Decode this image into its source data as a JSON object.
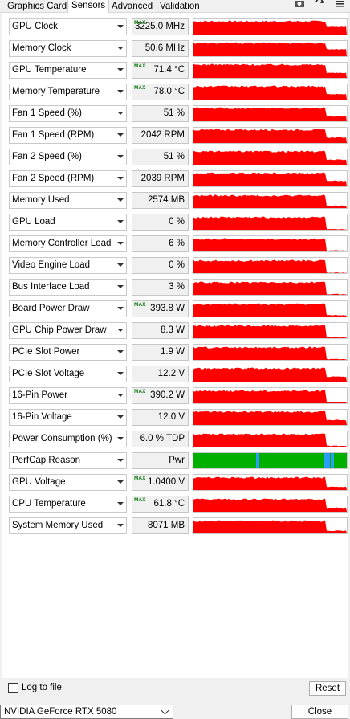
{
  "tabs": [
    {
      "label": "Graphics Card",
      "active": false
    },
    {
      "label": "Sensors",
      "active": true
    },
    {
      "label": "Advanced",
      "active": false
    },
    {
      "label": "Validation",
      "active": false
    }
  ],
  "sensors": [
    {
      "name": "GPU Clock",
      "value": "3225.0 MHz",
      "max": true,
      "level": 0.88,
      "color": "#ff0000"
    },
    {
      "name": "Memory Clock",
      "value": "50.6 MHz",
      "max": false,
      "level": 0.72,
      "color": "#ff0000"
    },
    {
      "name": "GPU Temperature",
      "value": "71.4 °C",
      "max": true,
      "level": 0.5,
      "color": "#ff0000"
    },
    {
      "name": "Memory Temperature",
      "value": "78.0 °C",
      "max": true,
      "level": 0.55,
      "color": "#ff0000"
    },
    {
      "name": "Fan 1 Speed (%)",
      "value": "51 %",
      "max": false,
      "level": 0.5,
      "color": "#ff0000"
    },
    {
      "name": "Fan 1 Speed (RPM)",
      "value": "2042 RPM",
      "max": false,
      "level": 0.55,
      "color": "#ff0000"
    },
    {
      "name": "Fan 2 Speed (%)",
      "value": "51 %",
      "max": false,
      "level": 0.5,
      "color": "#ff0000"
    },
    {
      "name": "Fan 2 Speed (RPM)",
      "value": "2039 RPM",
      "max": false,
      "level": 0.55,
      "color": "#ff0000"
    },
    {
      "name": "Memory Used",
      "value": "2574 MB",
      "max": false,
      "level": 0.2,
      "color": "#ff0000"
    },
    {
      "name": "GPU Load",
      "value": "0 %",
      "max": false,
      "level": 0.0,
      "color": "#ff0000"
    },
    {
      "name": "Memory Controller Load",
      "value": "6 %",
      "max": false,
      "level": 0.06,
      "color": "#ff0000"
    },
    {
      "name": "Video Engine Load",
      "value": "0 %",
      "max": false,
      "level": 0.0,
      "color": "#ff0000"
    },
    {
      "name": "Bus Interface Load",
      "value": "3 %",
      "max": false,
      "level": 0.03,
      "color": "#ff0000"
    },
    {
      "name": "Board Power Draw",
      "value": "393.8 W",
      "max": true,
      "level": 0.1,
      "color": "#ff0000"
    },
    {
      "name": "GPU Chip Power Draw",
      "value": "8.3 W",
      "max": false,
      "level": 0.05,
      "color": "#ff0000"
    },
    {
      "name": "PCIe Slot Power",
      "value": "1.9 W",
      "max": false,
      "level": 0.05,
      "color": "#ff0000"
    },
    {
      "name": "PCIe Slot Voltage",
      "value": "12.2 V",
      "max": false,
      "level": 0.5,
      "color": "#ff0000"
    },
    {
      "name": "16-Pin Power",
      "value": "390.2 W",
      "max": true,
      "level": 0.1,
      "color": "#ff0000"
    },
    {
      "name": "16-Pin Voltage",
      "value": "12.0 V",
      "max": false,
      "level": 0.5,
      "color": "#ff0000"
    },
    {
      "name": "Power Consumption (%)",
      "value": "6.0 % TDP",
      "max": false,
      "level": 0.06,
      "color": "#ff0000"
    },
    {
      "name": "PerfCap Reason",
      "value": "Pwr",
      "max": false,
      "level": 1.0,
      "color": "#00b000"
    },
    {
      "name": "GPU Voltage",
      "value": "1.0400 V",
      "max": true,
      "level": 0.3,
      "color": "#ff0000"
    },
    {
      "name": "CPU Temperature",
      "value": "61.8 °C",
      "max": true,
      "level": 0.4,
      "color": "#ff0000"
    },
    {
      "name": "System Memory Used",
      "value": "8071 MB",
      "max": false,
      "level": 0.25,
      "color": "#ff0000"
    }
  ],
  "max_label": "MAX",
  "log_to_file": {
    "label": "Log to file",
    "checked": false
  },
  "reset_label": "Reset",
  "gpu_select": {
    "value": "NVIDIA GeForce RTX 5080"
  },
  "close_label": "Close"
}
